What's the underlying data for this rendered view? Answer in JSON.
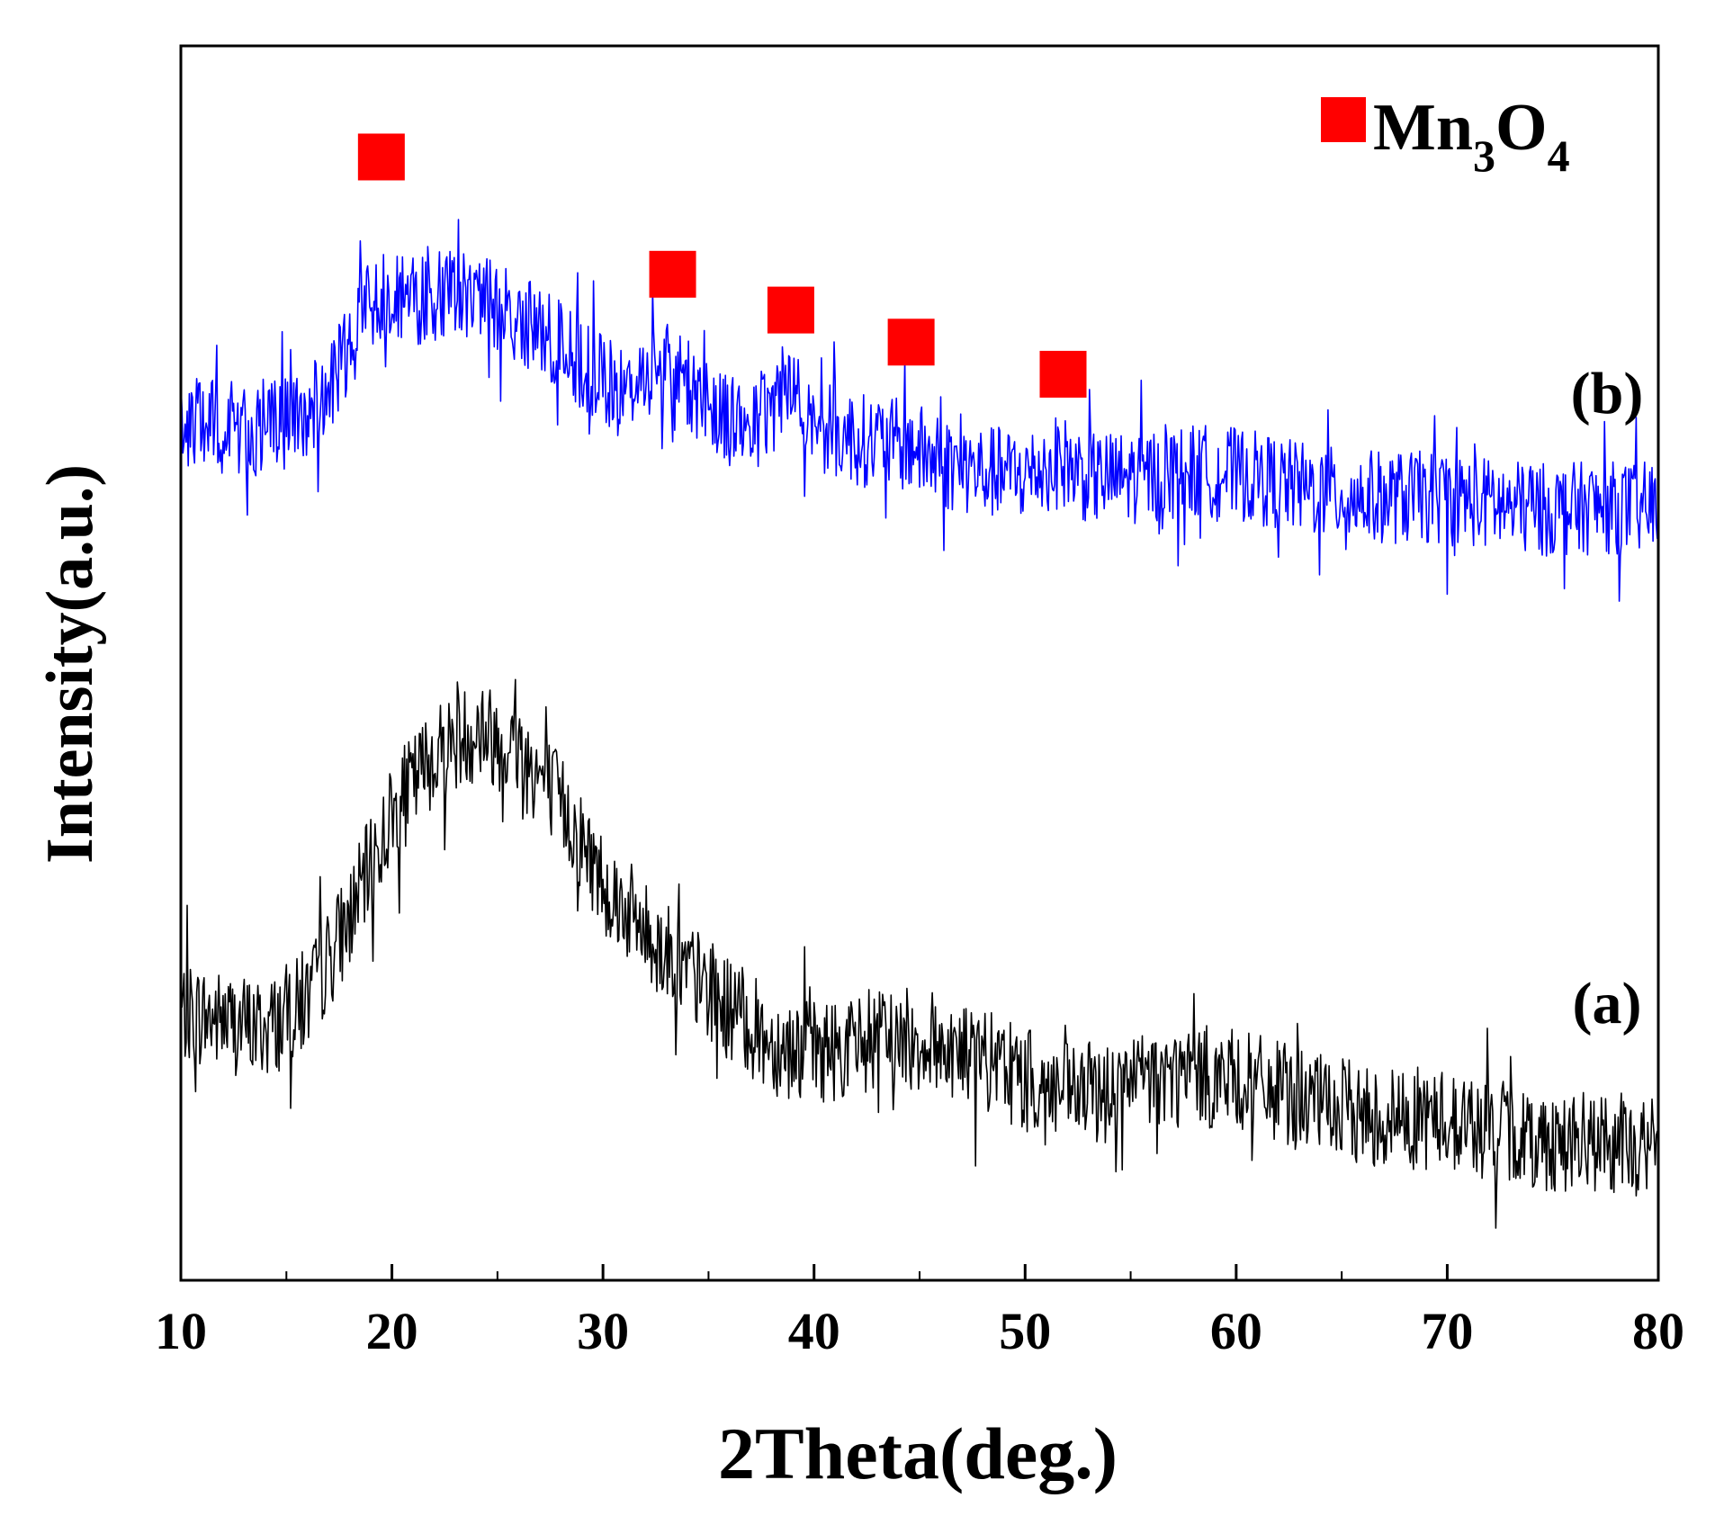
{
  "chart_data": {
    "type": "line",
    "title": "",
    "xlabel": "2Theta(deg.)",
    "ylabel": "Intensity(a.u.)",
    "xlim": [
      10,
      80
    ],
    "ylim": [
      0,
      100
    ],
    "xticks": [
      10,
      20,
      30,
      40,
      50,
      60,
      70,
      80
    ],
    "grid": false,
    "y_tick_labels_shown": false,
    "legend": {
      "position": "top-right",
      "marker": "square",
      "marker_color": "#ff0000",
      "label_base_1": "Mn",
      "label_sub_1": "3",
      "label_base_2": "O",
      "label_sub_2": "4"
    },
    "series": [
      {
        "name": "(a)",
        "color": "#000000",
        "noise": 4.2,
        "points": [
          [
            10,
            21.8
          ],
          [
            12,
            21.0
          ],
          [
            14,
            20.3
          ],
          [
            16,
            22.6
          ],
          [
            18,
            29.5
          ],
          [
            20,
            37.6
          ],
          [
            22,
            42.8
          ],
          [
            24,
            44.6
          ],
          [
            26,
            43.2
          ],
          [
            28,
            38.6
          ],
          [
            30,
            32.4
          ],
          [
            32,
            28.2
          ],
          [
            34,
            25.0
          ],
          [
            36,
            22.0
          ],
          [
            38,
            19.2
          ],
          [
            40,
            18.5
          ],
          [
            42,
            19.0
          ],
          [
            44,
            19.6
          ],
          [
            46,
            19.2
          ],
          [
            48,
            17.8
          ],
          [
            50,
            16.2
          ],
          [
            52,
            15.0
          ],
          [
            54,
            15.2
          ],
          [
            56,
            16.3
          ],
          [
            58,
            16.6
          ],
          [
            60,
            16.2
          ],
          [
            62,
            15.2
          ],
          [
            64,
            14.2
          ],
          [
            66,
            13.4
          ],
          [
            68,
            13.2
          ],
          [
            70,
            13.0
          ],
          [
            72,
            12.2
          ],
          [
            74,
            11.4
          ],
          [
            76,
            11.2
          ],
          [
            78,
            11.0
          ],
          [
            80,
            10.8
          ]
        ]
      },
      {
        "name": "(b)",
        "color": "#0000ff",
        "noise": 3.8,
        "points": [
          [
            10,
            69.5
          ],
          [
            12,
            69.0
          ],
          [
            14,
            68.8
          ],
          [
            16,
            70.2
          ],
          [
            17,
            71.8
          ],
          [
            18,
            75.8
          ],
          [
            19,
            79.6
          ],
          [
            20,
            80.2
          ],
          [
            21,
            79.2
          ],
          [
            22,
            79.5
          ],
          [
            24,
            80.0
          ],
          [
            26,
            77.8
          ],
          [
            28,
            75.6
          ],
          [
            30,
            72.8
          ],
          [
            31,
            71.5
          ],
          [
            32,
            73.8
          ],
          [
            33,
            74.3
          ],
          [
            34,
            72.4
          ],
          [
            36,
            70.0
          ],
          [
            37,
            69.2
          ],
          [
            38,
            70.5
          ],
          [
            38.6,
            72.8
          ],
          [
            39.6,
            70.2
          ],
          [
            41,
            68.6
          ],
          [
            43,
            67.8
          ],
          [
            44.6,
            67.6
          ],
          [
            46,
            66.2
          ],
          [
            48,
            65.5
          ],
          [
            50,
            65.2
          ],
          [
            51.7,
            66.4
          ],
          [
            53,
            65.0
          ],
          [
            55,
            65.0
          ],
          [
            57,
            65.4
          ],
          [
            59,
            65.6
          ],
          [
            61,
            65.0
          ],
          [
            63,
            64.2
          ],
          [
            65,
            63.6
          ],
          [
            67,
            63.4
          ],
          [
            69,
            63.4
          ],
          [
            71,
            63.2
          ],
          [
            73,
            62.6
          ],
          [
            75,
            62.4
          ],
          [
            77,
            62.6
          ],
          [
            79,
            62.5
          ],
          [
            80,
            62.6
          ]
        ]
      }
    ],
    "annotations": [
      {
        "x": 19.5,
        "y": 91.0,
        "type": "marker"
      },
      {
        "x": 33.3,
        "y": 81.5,
        "type": "marker"
      },
      {
        "x": 38.9,
        "y": 78.6,
        "type": "marker"
      },
      {
        "x": 44.6,
        "y": 76.0,
        "type": "marker"
      },
      {
        "x": 51.8,
        "y": 73.4,
        "type": "marker"
      }
    ],
    "series_labels": [
      {
        "text": "(b)",
        "x": 76.5,
        "y": 76.0
      },
      {
        "text": "(a)",
        "x": 76.5,
        "y": 24.0
      }
    ]
  }
}
